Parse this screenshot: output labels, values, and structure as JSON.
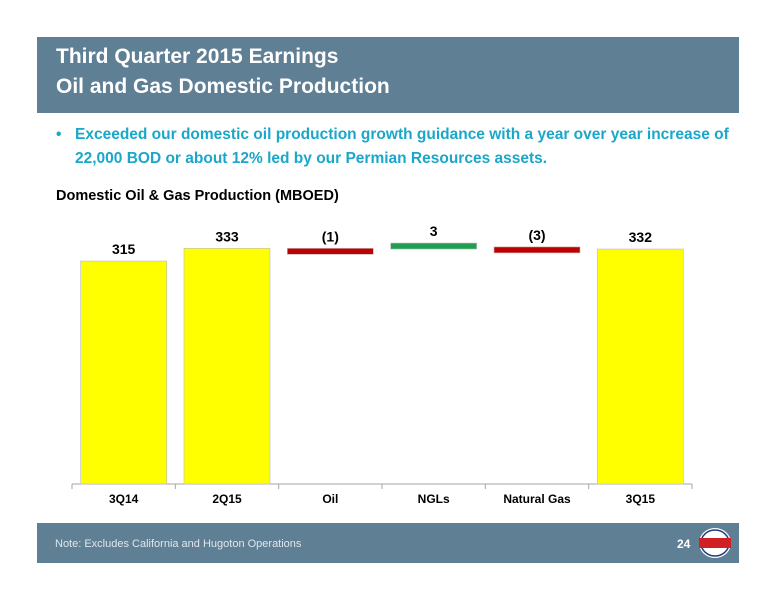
{
  "header": {
    "title_line1": "Third Quarter 2015 Earnings",
    "title_line2": "Oil and Gas Domestic Production"
  },
  "bullet": {
    "marker": "•",
    "text": "Exceeded our domestic oil production growth guidance with a year over year increase of 22,000 BOD or about 12% led by our Permian Resources assets."
  },
  "chart_data": {
    "type": "bar",
    "subtype": "waterfall",
    "title": "Domestic Oil & Gas Production (MBOED)",
    "categories": [
      "3Q14",
      "2Q15",
      "Oil",
      "NGLs",
      "Natural Gas",
      "3Q15"
    ],
    "values": [
      315,
      333,
      -1,
      3,
      -3,
      332
    ],
    "labels": [
      "315",
      "333",
      "(1)",
      "3",
      "(3)",
      "332"
    ],
    "kinds": [
      "total",
      "total",
      "decrease",
      "increase",
      "decrease",
      "total"
    ],
    "colors": {
      "total": "#ffff00",
      "increase": "#1e9e50",
      "decrease": "#c00000"
    },
    "legend": "none",
    "grid": false
  },
  "footer": {
    "note": "Note:  Excludes California and Hugoton Operations",
    "page_number": "24",
    "logo_text": "OXY"
  }
}
